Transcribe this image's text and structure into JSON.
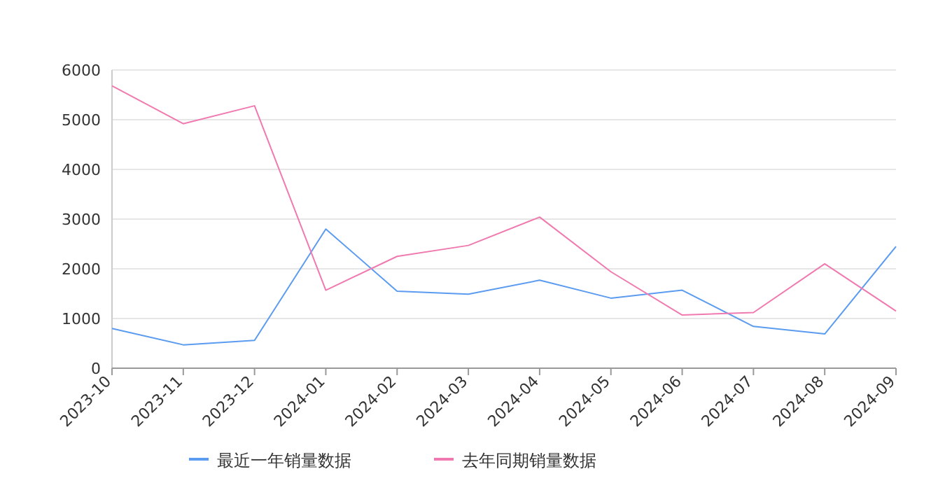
{
  "chart_data": {
    "type": "line",
    "categories": [
      "2023-10",
      "2023-11",
      "2023-12",
      "2024-01",
      "2024-02",
      "2024-03",
      "2024-04",
      "2024-05",
      "2024-06",
      "2024-07",
      "2024-08",
      "2024-09"
    ],
    "series": [
      {
        "name": "最近一年销量数据",
        "color": "#5b9bf0",
        "values": [
          800,
          470,
          560,
          2800,
          1550,
          1490,
          1770,
          1410,
          1570,
          840,
          690,
          2450
        ]
      },
      {
        "name": "去年同期销量数据",
        "color": "#f07ab0",
        "values": [
          5680,
          4920,
          5280,
          1570,
          2250,
          2470,
          3040,
          1940,
          1070,
          1120,
          2100,
          1150
        ]
      }
    ],
    "ylim": [
      0,
      6000
    ],
    "yticks": [
      0,
      1000,
      2000,
      3000,
      4000,
      5000,
      6000
    ],
    "grid": "y",
    "legend": "bottom"
  }
}
